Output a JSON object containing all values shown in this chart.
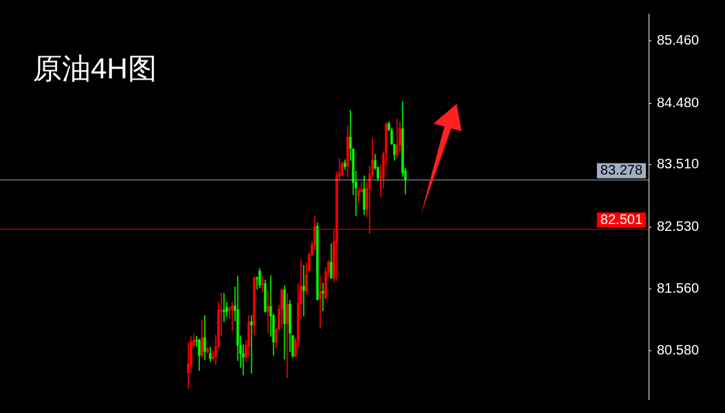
{
  "chart_data": {
    "type": "candlestick",
    "title": "原油4H图",
    "categories": [
      null,
      null,
      null,
      null,
      null,
      null,
      null,
      null,
      null,
      null,
      null,
      null,
      null,
      null,
      null,
      null,
      null,
      null,
      null,
      null,
      null,
      null,
      null,
      null,
      null,
      null,
      null,
      null,
      null,
      null,
      null,
      null,
      null,
      null,
      null,
      null,
      null,
      null,
      null,
      null,
      null,
      null,
      null,
      null,
      null,
      null,
      null,
      null,
      null,
      null,
      null,
      null,
      null,
      null,
      null,
      null,
      null,
      null,
      null,
      null,
      null,
      null,
      null,
      null,
      null,
      null,
      null,
      null,
      null,
      null,
      null,
      null,
      null,
      null,
      null,
      null,
      null,
      null,
      null,
      null,
      null,
      null,
      null,
      null,
      null,
      null,
      null,
      null,
      null,
      null,
      null,
      null,
      null,
      null,
      null,
      null,
      null,
      null,
      null,
      null,
      null,
      null,
      null,
      null,
      null,
      null,
      null,
      null,
      null,
      null,
      null,
      null,
      null,
      null,
      null,
      null,
      null,
      null,
      null,
      null,
      null,
      null,
      null,
      null,
      null,
      null,
      null,
      null,
      null,
      null,
      null,
      null,
      null,
      null,
      null,
      null,
      null,
      null,
      null,
      null,
      null,
      null,
      null,
      null,
      null,
      null,
      null,
      null,
      null,
      null,
      null,
      null,
      null,
      null,
      null,
      null,
      null,
      null,
      null,
      null,
      null,
      null,
      null,
      null,
      null,
      null,
      null,
      null,
      null,
      null,
      null,
      null,
      null,
      null,
      null,
      null,
      null,
      null,
      null,
      null,
      null,
      null,
      null,
      null,
      null,
      null,
      null,
      null,
      null,
      null,
      null,
      null,
      null,
      null,
      null,
      null,
      null,
      null,
      null,
      null,
      null,
      null,
      null,
      null,
      null,
      null,
      null,
      null,
      null,
      null,
      null,
      null,
      null,
      null,
      null,
      null,
      null,
      null,
      null,
      null,
      null,
      null,
      null,
      null,
      null,
      null,
      null,
      null,
      null,
      null,
      null,
      null,
      null,
      null,
      null,
      null
    ],
    "ohlc": [
      null,
      null,
      null,
      null,
      null,
      null,
      null,
      null,
      null,
      null,
      null,
      null,
      null,
      null,
      null,
      null,
      null,
      null,
      null,
      null,
      null,
      null,
      null,
      null,
      null,
      null,
      null,
      null,
      null,
      null,
      null,
      null,
      null,
      null,
      null,
      null,
      null,
      null,
      null,
      null,
      null,
      null,
      null,
      null,
      null,
      null,
      null,
      null,
      null,
      null,
      null,
      null,
      null,
      null,
      null,
      null,
      null,
      null,
      null,
      null,
      null,
      null,
      null,
      null,
      null,
      null,
      null,
      null,
      [
        80.24,
        80.71,
        79.99,
        80.37
      ],
      [
        80.36,
        80.81,
        80.23,
        80.73
      ],
      [
        80.67,
        80.85,
        80.65,
        80.75
      ],
      [
        80.75,
        80.81,
        80.65,
        80.74
      ],
      [
        80.75,
        80.77,
        80.27,
        80.51
      ],
      [
        80.51,
        81.07,
        80.48,
        80.79
      ],
      [
        80.79,
        81.14,
        80.44,
        80.57
      ],
      [
        80.56,
        80.64,
        80.55,
        80.61
      ],
      [
        80.54,
        80.64,
        80.41,
        80.46
      ],
      [
        80.46,
        80.58,
        80.43,
        80.5
      ],
      [
        80.49,
        80.83,
        80.37,
        80.65
      ],
      [
        80.65,
        81.35,
        80.62,
        81.22
      ],
      [
        81.21,
        81.49,
        80.82,
        81.23
      ],
      [
        81.22,
        81.49,
        81.04,
        81.2
      ],
      [
        81.27,
        81.35,
        81.12,
        81.2
      ],
      [
        81.21,
        81.28,
        81.09,
        81.25
      ],
      [
        81.24,
        81.35,
        80.9,
        81.29
      ],
      [
        81.29,
        81.59,
        81.05,
        81.22
      ],
      [
        81.23,
        81.76,
        80.43,
        80.67
      ],
      [
        80.67,
        80.82,
        80.32,
        80.54
      ],
      [
        80.54,
        80.68,
        80.2,
        80.48
      ],
      [
        80.48,
        80.75,
        80.41,
        80.67
      ],
      [
        80.66,
        81.14,
        80.51,
        81.04
      ],
      [
        81.04,
        81.14,
        80.23,
        80.99
      ],
      [
        80.98,
        81.75,
        80.83,
        81.73
      ],
      [
        81.73,
        81.75,
        81.55,
        81.72
      ],
      [
        81.84,
        81.88,
        81.57,
        81.62
      ],
      [
        81.62,
        81.76,
        81.51,
        81.64
      ],
      [
        81.64,
        81.7,
        81.19,
        81.2
      ],
      [
        81.2,
        81.52,
        80.87,
        81.29
      ],
      [
        81.28,
        81.77,
        80.81,
        81.13
      ],
      [
        81.14,
        81.16,
        80.51,
        80.72
      ],
      [
        80.72,
        80.94,
        80.63,
        80.93
      ],
      [
        80.92,
        81.3,
        80.91,
        81.24
      ],
      [
        81.24,
        81.57,
        80.95,
        81.54
      ],
      [
        81.54,
        81.61,
        80.45,
        81.01
      ],
      [
        81.01,
        81.49,
        80.16,
        81.31
      ],
      [
        81.32,
        81.38,
        80.57,
        80.86
      ],
      [
        80.82,
        80.83,
        80.48,
        80.5
      ],
      [
        80.5,
        80.78,
        80.48,
        80.76
      ],
      [
        80.76,
        81.64,
        80.63,
        81.33
      ],
      [
        81.32,
        82.02,
        81.08,
        81.6
      ],
      [
        81.6,
        81.93,
        81.13,
        81.53
      ],
      [
        81.53,
        81.97,
        81.47,
        81.78
      ],
      [
        81.85,
        82.13,
        81.82,
        82.1
      ],
      [
        82.09,
        82.31,
        82.08,
        82.25
      ],
      [
        82.24,
        82.7,
        82.17,
        82.54
      ],
      [
        82.54,
        82.6,
        81.38,
        81.39
      ],
      [
        81.4,
        81.77,
        80.95,
        81.51
      ],
      [
        81.52,
        81.65,
        81.21,
        81.49
      ],
      [
        81.41,
        81.89,
        81.4,
        81.83
      ],
      [
        81.83,
        82.01,
        81.76,
        81.98
      ],
      [
        81.98,
        82.27,
        81.72,
        81.73
      ],
      [
        81.73,
        82.49,
        81.66,
        82.3
      ],
      [
        82.29,
        83.4,
        81.69,
        83.34
      ],
      [
        83.33,
        83.61,
        83.26,
        83.38
      ],
      [
        83.35,
        83.56,
        83.34,
        83.53
      ],
      [
        83.54,
        83.59,
        83.44,
        83.48
      ],
      [
        83.49,
        84.12,
        83.32,
        83.95
      ],
      [
        83.95,
        84.37,
        83.58,
        83.77
      ],
      [
        83.76,
        83.77,
        83.04,
        83.23
      ],
      [
        83.24,
        83.41,
        82.71,
        83.15
      ],
      [
        83.02,
        83.15,
        82.91,
        83.1
      ],
      [
        83.09,
        83.24,
        83.08,
        83.12
      ],
      [
        83.13,
        83.34,
        82.72,
        82.81
      ],
      [
        82.81,
        83.24,
        82.69,
        83.14
      ],
      [
        83.14,
        83.49,
        82.43,
        83.36
      ],
      [
        83.35,
        83.93,
        83.32,
        83.59
      ],
      [
        83.58,
        83.68,
        83.44,
        83.46
      ],
      [
        83.47,
        83.48,
        83.26,
        83.3
      ],
      [
        83.3,
        83.51,
        83.0,
        83.33
      ],
      [
        83.31,
        83.72,
        83.14,
        83.69
      ],
      [
        83.69,
        84.18,
        83.51,
        84.15
      ],
      [
        84.16,
        84.19,
        84.05,
        84.06
      ],
      [
        84.05,
        84.09,
        83.83,
        83.84
      ],
      [
        83.83,
        83.84,
        83.58,
        83.67
      ],
      [
        83.67,
        84.23,
        83.62,
        83.82
      ],
      [
        83.82,
        84.19,
        83.72,
        84.09
      ],
      [
        84.08,
        84.51,
        83.33,
        83.39
      ],
      [
        83.42,
        83.46,
        83.05,
        83.28
      ],
      null,
      null,
      null,
      null,
      null,
      null,
      null,
      null,
      null,
      null,
      null,
      null,
      null,
      null,
      null,
      null,
      null,
      null,
      null,
      null,
      null,
      null,
      null,
      null,
      null,
      null,
      null,
      null,
      null,
      null,
      null,
      null,
      null,
      null,
      null,
      null,
      null,
      null,
      null,
      null,
      null,
      null,
      null,
      null,
      null,
      null,
      null,
      null,
      null,
      null,
      null,
      null,
      null,
      null,
      null,
      null,
      null,
      null,
      null,
      null,
      null,
      null,
      null,
      null,
      null,
      null,
      null,
      null,
      null,
      null,
      null,
      null,
      null,
      null,
      null,
      null,
      null,
      null,
      null,
      null,
      null,
      null,
      null,
      null,
      null,
      null,
      null,
      null
    ],
    "colors": [
      null,
      null,
      null,
      null,
      null,
      null,
      null,
      null,
      null,
      null,
      null,
      null,
      null,
      null,
      null,
      null,
      null,
      null,
      null,
      null,
      null,
      null,
      null,
      null,
      null,
      null,
      null,
      null,
      null,
      null,
      null,
      null,
      null,
      null,
      null,
      null,
      null,
      null,
      null,
      null,
      null,
      null,
      null,
      null,
      null,
      null,
      null,
      null,
      null,
      null,
      null,
      null,
      null,
      null,
      null,
      null,
      null,
      null,
      null,
      null,
      null,
      null,
      null,
      null,
      null,
      null,
      null,
      null,
      "#ff0000",
      "#ff0000",
      "#ff0000",
      "#00ff00",
      "#00ff00",
      "#ff0000",
      "#00ff00",
      "#ff0000",
      "#00ff00",
      "#ff0000",
      "#ff0000",
      "#ff0000",
      "#ff0000",
      "#00ff00",
      "#00ff00",
      "#ff0000",
      "#ff0000",
      "#00ff00",
      "#00ff00",
      "#00ff00",
      "#00ff00",
      "#ff0000",
      "#ff0000",
      "#00ff00",
      "#ff0000",
      "#00ff00",
      "#00ff00",
      "#ff0000",
      "#00ff00",
      "#ff0000",
      "#00ff00",
      "#00ff00",
      "#ff0000",
      "#ff0000",
      "#ff0000",
      "#00ff00",
      "#ff0000",
      "#00ff00",
      "#00ff00",
      "#ff0000",
      "#ff0000",
      "#ff0000",
      "#00ff00",
      "#ff0000",
      "#ff0000",
      "#ff0000",
      "#ff0000",
      "#00ff00",
      "#ff0000",
      "#00ff00",
      "#ff0000",
      "#ff0000",
      "#00ff00",
      "#ff0000",
      "#ff0000",
      "#ff0000",
      "#ff0000",
      "#00ff00",
      "#ff0000",
      "#00ff00",
      "#00ff00",
      "#00ff00",
      "#ff0000",
      "#ff0000",
      "#00ff00",
      "#ff0000",
      "#ff0000",
      "#ff0000",
      "#00ff00",
      "#00ff00",
      "#ff0000",
      "#ff0000",
      "#ff0000",
      "#00ff00",
      "#00ff00",
      "#00ff00",
      "#ff0000",
      "#ff0000",
      "#00ff00",
      "#00ff00",
      null,
      null,
      null,
      null,
      null,
      null,
      null,
      null,
      null,
      null,
      null,
      null,
      null,
      null,
      null,
      null,
      null,
      null,
      null,
      null,
      null,
      null,
      null,
      null,
      null,
      null,
      null,
      null,
      null,
      null,
      null,
      null,
      null,
      null,
      null,
      null,
      null,
      null,
      null,
      null,
      null,
      null,
      null,
      null,
      null,
      null,
      null,
      null,
      null,
      null,
      null,
      null,
      null,
      null,
      null,
      null,
      null,
      null,
      null,
      null,
      null,
      null,
      null,
      null,
      null,
      null,
      null,
      null,
      null,
      null,
      null,
      null,
      null,
      null,
      null,
      null,
      null,
      null,
      null,
      null,
      null,
      null,
      null,
      null,
      null,
      null,
      null,
      null
    ],
    "ylim": [
      79.82,
      85.89
    ],
    "yticks": [
      {
        "value": 80.58,
        "label": "80.580"
      },
      {
        "value": 81.56,
        "label": "81.560"
      },
      {
        "value": 82.53,
        "label": "82.530"
      },
      {
        "value": 83.51,
        "label": "83.510"
      },
      {
        "value": 84.48,
        "label": "84.480"
      },
      {
        "value": 85.46,
        "label": "85.460"
      }
    ],
    "ref_lines": [
      {
        "axis": "y",
        "value": 83.278,
        "label": "83.278",
        "color": "#a0b0c0"
      },
      {
        "axis": "y",
        "value": 82.501,
        "label": "82.501",
        "color": "#ff0000"
      }
    ]
  }
}
